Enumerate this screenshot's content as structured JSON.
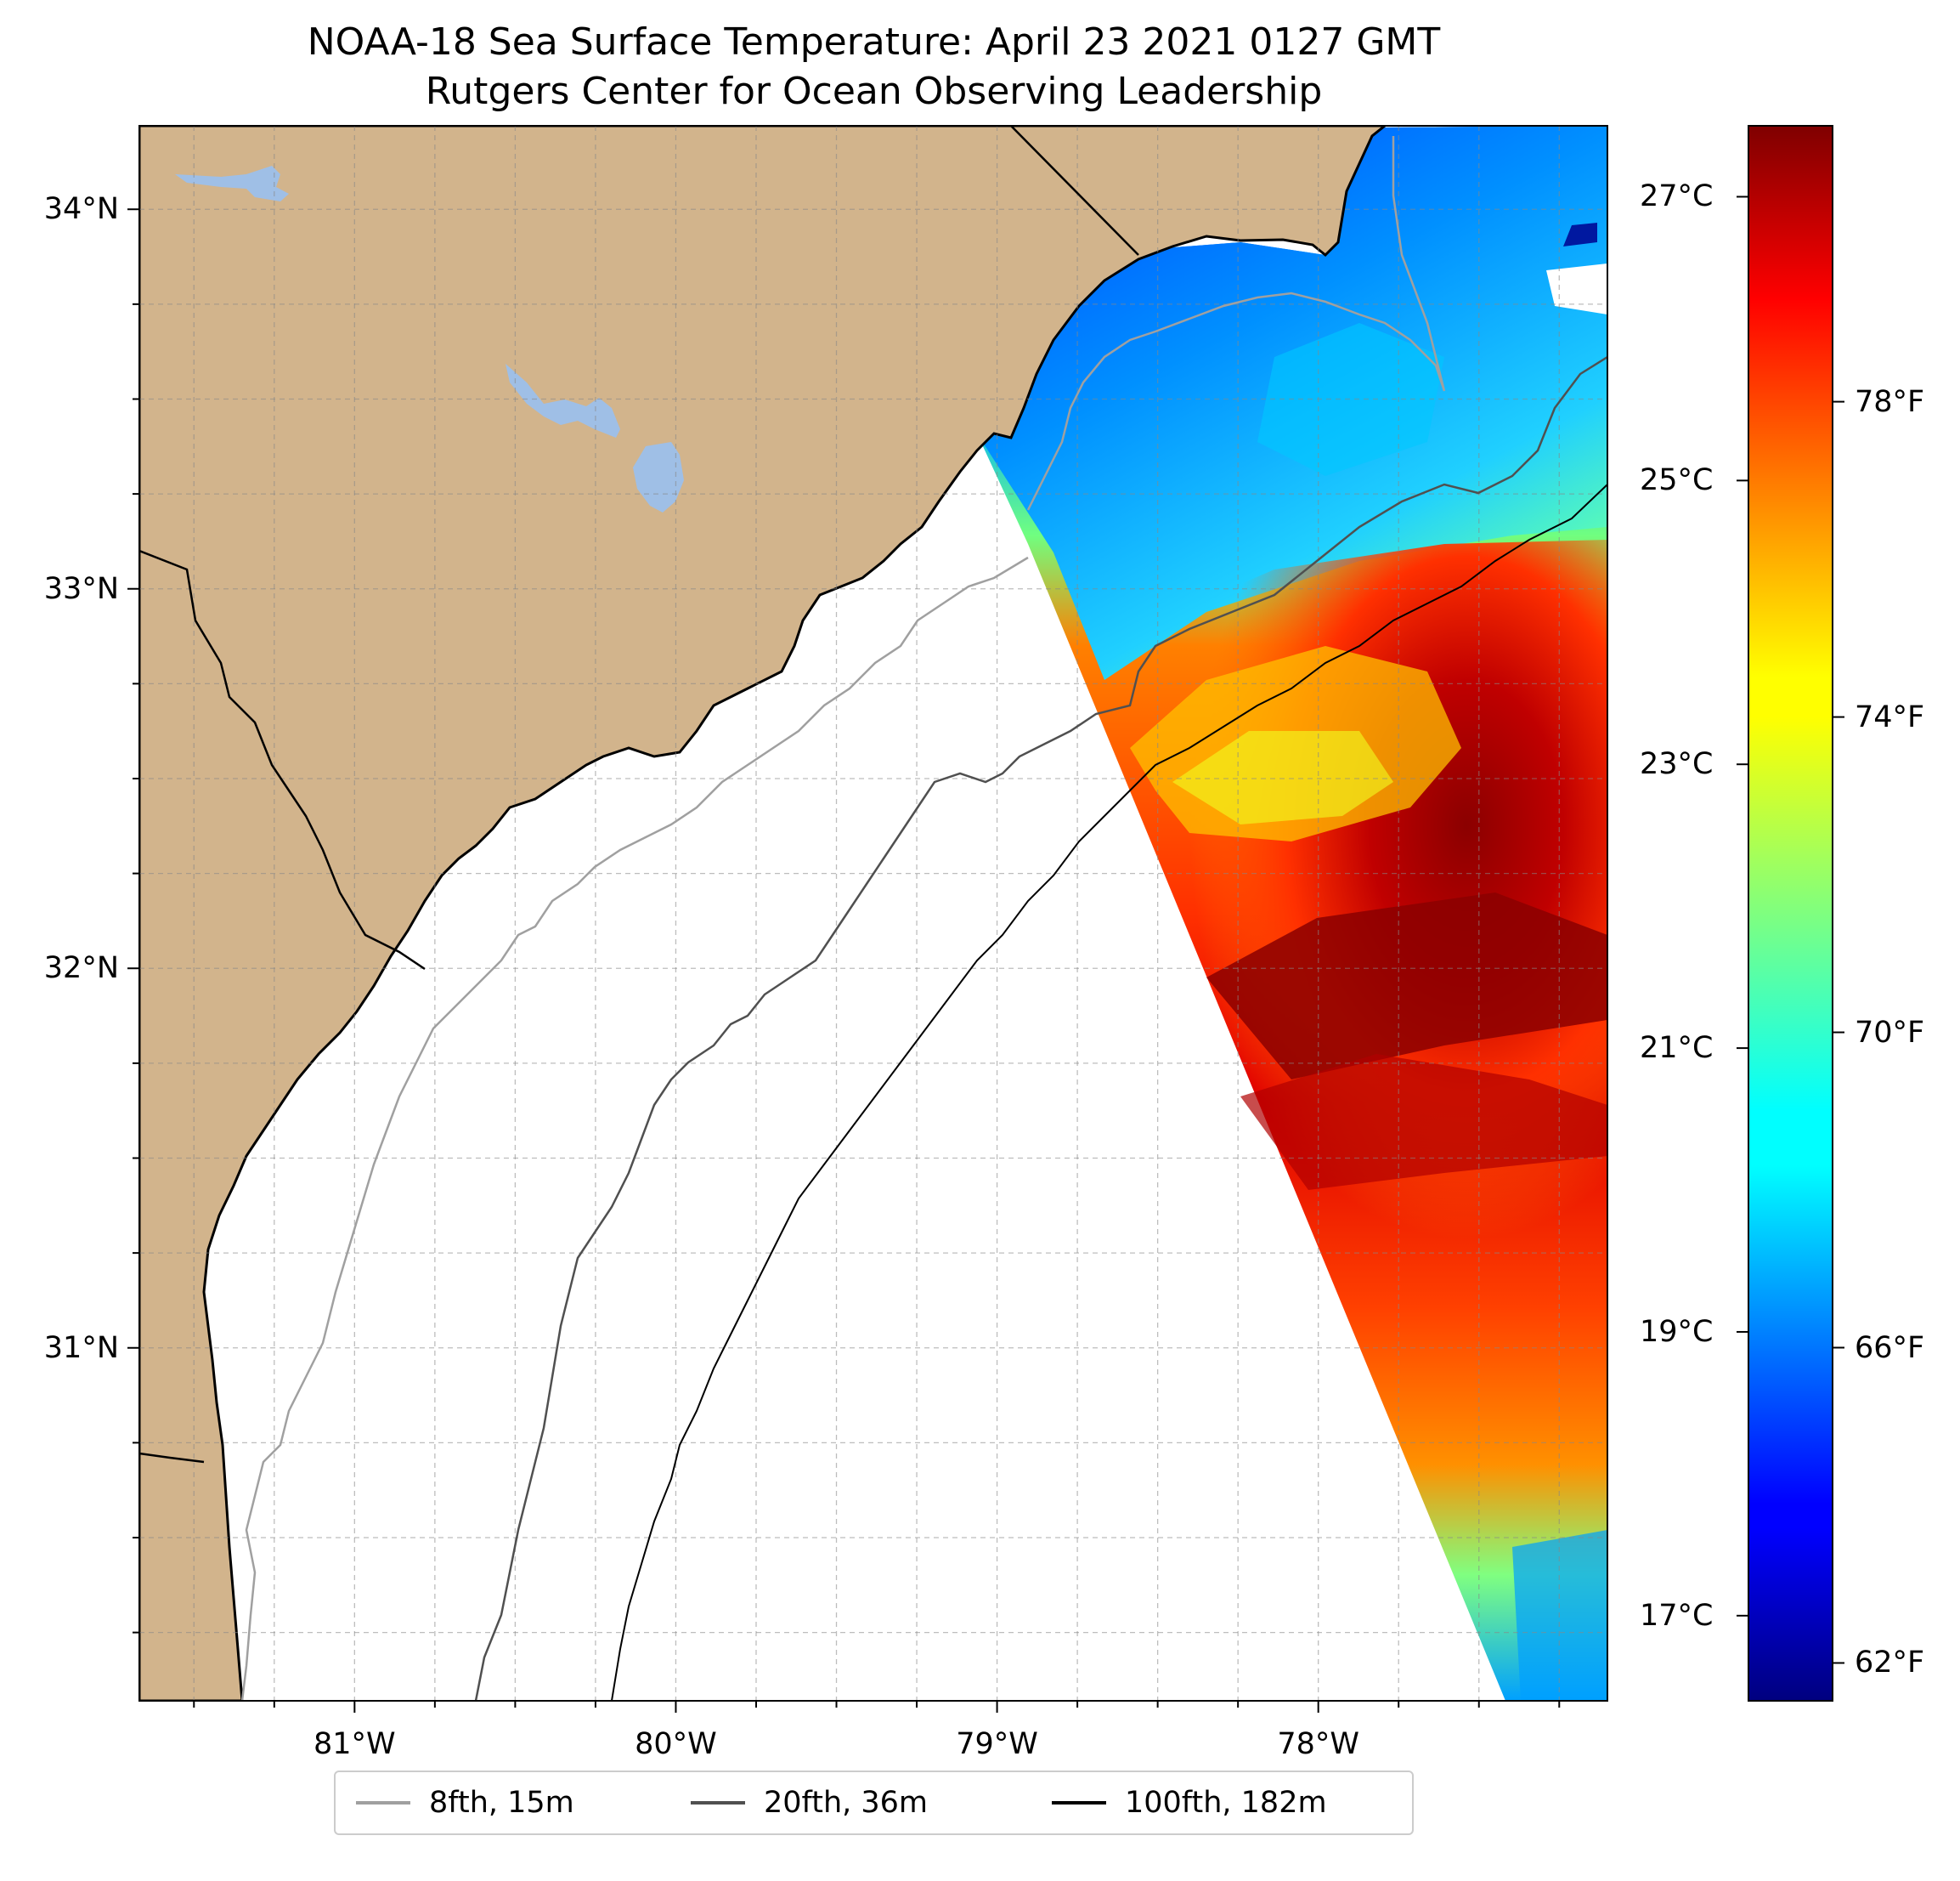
{
  "title_line1": "NOAA-18 Sea Surface Temperature: April 23 2021 0127 GMT",
  "title_line2": "Rutgers Center for Ocean Observing Leadership",
  "map": {
    "lon_min": -81.67,
    "lon_max": -77.1,
    "lat_min": 30.07,
    "lat_max": 34.22,
    "lon_ticks": [
      {
        "value": -81,
        "label": "81°W"
      },
      {
        "value": -80,
        "label": "80°W"
      },
      {
        "value": -79,
        "label": "79°W"
      },
      {
        "value": -78,
        "label": "78°W"
      }
    ],
    "lat_ticks": [
      {
        "value": 34,
        "label": "34°N"
      },
      {
        "value": 33,
        "label": "33°N"
      },
      {
        "value": 32,
        "label": "32°N"
      },
      {
        "value": 31,
        "label": "31°N"
      }
    ],
    "grid_minor_step_deg": 0.25,
    "colors": {
      "land": "#d2b48c",
      "water_body": "#9fbfe6",
      "ocean_nodata": "#ffffff",
      "coastline": "#000000",
      "isobath_8fth": "#a0a0a0",
      "isobath_20fth": "#505050",
      "isobath_100fth": "#000000"
    }
  },
  "colorbar": {
    "colormap": "jet",
    "min_c": 16.4,
    "max_c": 27.5,
    "celsius_ticks": [
      {
        "value": 27,
        "label": "27°C"
      },
      {
        "value": 25,
        "label": "25°C"
      },
      {
        "value": 23,
        "label": "23°C"
      },
      {
        "value": 21,
        "label": "21°C"
      },
      {
        "value": 19,
        "label": "19°C"
      },
      {
        "value": 17,
        "label": "17°C"
      }
    ],
    "fahrenheit_ticks": [
      {
        "value": 78,
        "label": "78°F"
      },
      {
        "value": 74,
        "label": "74°F"
      },
      {
        "value": 70,
        "label": "70°F"
      },
      {
        "value": 66,
        "label": "66°F"
      },
      {
        "value": 62,
        "label": "62°F"
      }
    ]
  },
  "legend": [
    {
      "label": "8fth, 15m",
      "color": "#a0a0a0"
    },
    {
      "label": "20fth, 36m",
      "color": "#505050"
    },
    {
      "label": "100fth, 182m",
      "color": "#000000"
    }
  ]
}
